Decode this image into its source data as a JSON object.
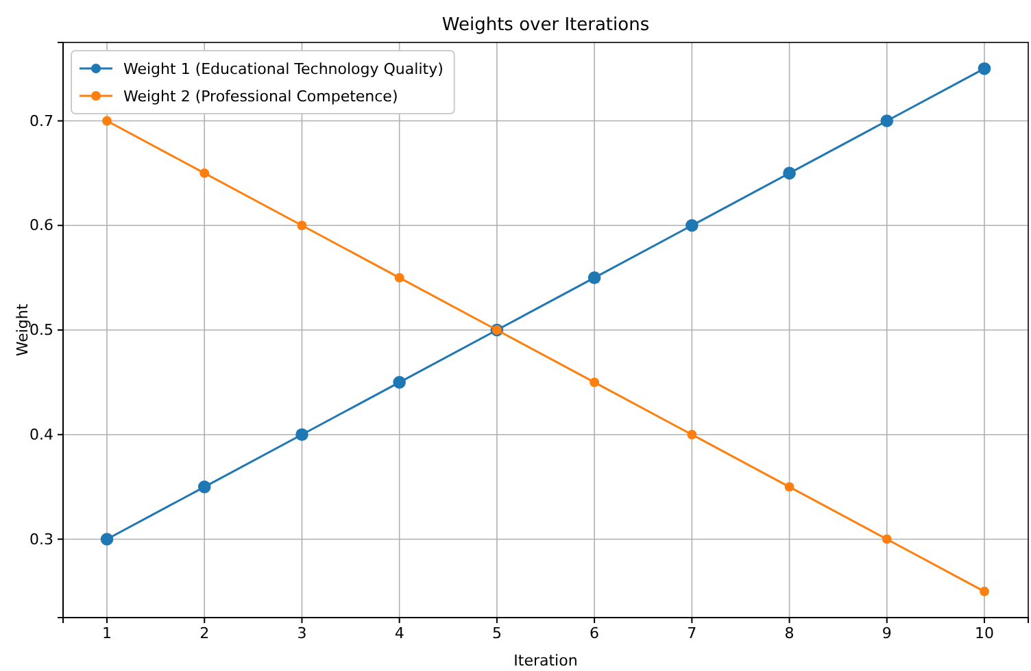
{
  "chart_data": {
    "type": "line",
    "title": "Weights over Iterations",
    "xlabel": "Iteration",
    "ylabel": "Weight",
    "x": [
      1,
      2,
      3,
      4,
      5,
      6,
      7,
      8,
      9,
      10
    ],
    "series": [
      {
        "name": "Weight 1 (Educational Technology Quality)",
        "color": "#1f77b4",
        "values": [
          0.3,
          0.35,
          0.4,
          0.45,
          0.5,
          0.55,
          0.6,
          0.65,
          0.7,
          0.75
        ]
      },
      {
        "name": "Weight 2 (Professional Competence)",
        "color": "#ff7f0e",
        "values": [
          0.7,
          0.65,
          0.6,
          0.55,
          0.5,
          0.45,
          0.4,
          0.35,
          0.3,
          0.25
        ]
      }
    ],
    "xlim": [
      0.55,
      10.45
    ],
    "ylim": [
      0.225,
      0.775
    ],
    "xticks": [
      1,
      2,
      3,
      4,
      5,
      6,
      7,
      8,
      9,
      10
    ],
    "yticks": [
      0.3,
      0.4,
      0.5,
      0.6,
      0.7
    ],
    "grid": true,
    "legend": "top left",
    "marker": "circle",
    "line_style": "solid"
  }
}
